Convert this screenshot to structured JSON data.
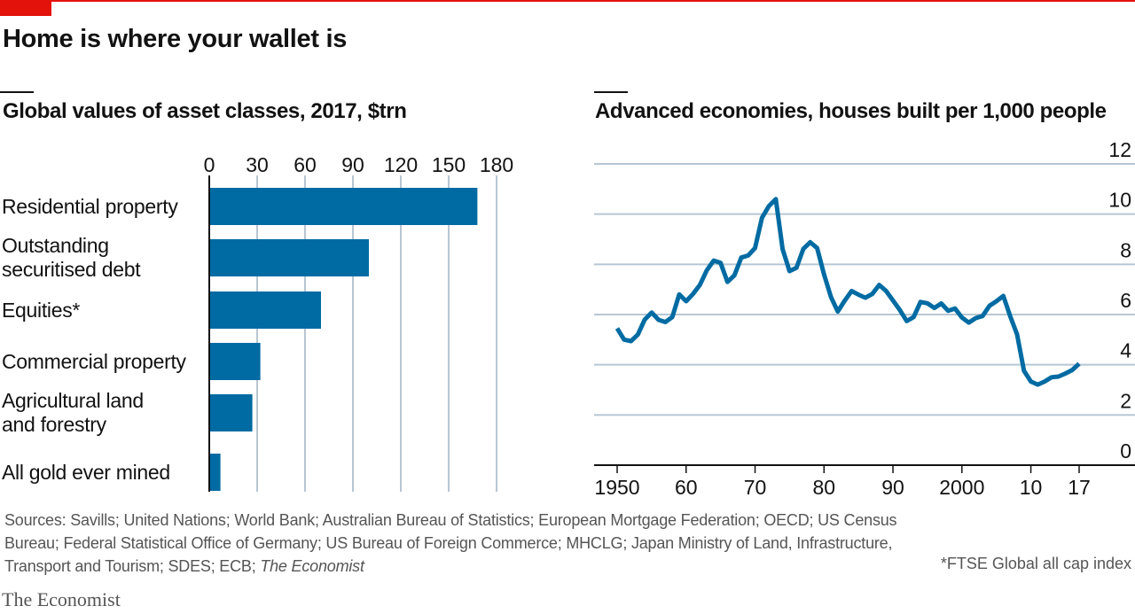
{
  "title": "Home is where your wallet is",
  "sources_prefix": "Sources: Savills; United Nations; World Bank; Australian Bureau of Statistics; European Mortgage Federation; OECD; US Census Bureau; Federal Statistical Office of Germany; US Bureau of Foreign Commerce;  MHCLG; Japan Ministry of Land, Infrastructure, Transport and Tourism; SDES; ECB;",
  "sources_italic": "The Economist",
  "footnote": "*FTSE Global all cap index",
  "brand": "The Economist",
  "colors": {
    "accent": "#e3120b",
    "bar": "#006ba2",
    "grid": "#b7c6d3"
  },
  "chart_data": [
    {
      "type": "bar",
      "title": "Global values of asset classes, 2017, $trn",
      "orientation": "horizontal",
      "categories": [
        "Residential property",
        "Outstanding securitised debt",
        "Equities*",
        "Commercial property",
        "Agricultural land and forestry",
        "All gold ever mined"
      ],
      "category_lines": [
        [
          "Residential property"
        ],
        [
          "Outstanding",
          "securitised debt"
        ],
        [
          "Equities*"
        ],
        [
          "Commercial property"
        ],
        [
          "Agricultural land",
          "and forestry"
        ],
        [
          "All gold ever mined"
        ]
      ],
      "values": [
        168,
        100,
        70,
        32,
        27,
        7
      ],
      "xlim": [
        0,
        180
      ],
      "xticks": [
        0,
        30,
        60,
        90,
        120,
        150,
        180
      ],
      "grid": true
    },
    {
      "type": "line",
      "title": "Advanced economies, houses built per 1,000 people",
      "x": [
        1950,
        1951,
        1952,
        1953,
        1954,
        1955,
        1956,
        1957,
        1958,
        1959,
        1960,
        1961,
        1962,
        1963,
        1964,
        1965,
        1966,
        1967,
        1968,
        1969,
        1970,
        1971,
        1972,
        1973,
        1974,
        1975,
        1976,
        1977,
        1978,
        1979,
        1980,
        1981,
        1982,
        1983,
        1984,
        1985,
        1986,
        1987,
        1988,
        1989,
        1990,
        1991,
        1992,
        1993,
        1994,
        1995,
        1996,
        1997,
        1998,
        1999,
        2000,
        2001,
        2002,
        2003,
        2004,
        2005,
        2006,
        2007,
        2008,
        2009,
        2010,
        2011,
        2012,
        2013,
        2014,
        2015,
        2016,
        2017
      ],
      "y": [
        5.45,
        5.0,
        4.94,
        5.2,
        5.8,
        6.08,
        5.79,
        5.7,
        5.9,
        6.8,
        6.53,
        6.82,
        7.18,
        7.76,
        8.15,
        8.06,
        7.3,
        7.56,
        8.27,
        8.35,
        8.65,
        9.85,
        10.32,
        10.6,
        8.6,
        7.73,
        7.86,
        8.62,
        8.88,
        8.65,
        7.6,
        6.7,
        6.12,
        6.55,
        6.94,
        6.79,
        6.67,
        6.82,
        7.18,
        6.94,
        6.56,
        6.18,
        5.74,
        5.9,
        6.5,
        6.45,
        6.26,
        6.44,
        6.15,
        6.24,
        5.88,
        5.68,
        5.86,
        5.94,
        6.35,
        6.53,
        6.74,
        5.94,
        5.21,
        3.76,
        3.33,
        3.21,
        3.33,
        3.5,
        3.53,
        3.65,
        3.79,
        4.04
      ],
      "ylim": [
        0,
        12
      ],
      "yticks": [
        0,
        2,
        4,
        6,
        8,
        10,
        12
      ],
      "xlim": [
        1947,
        2024
      ],
      "xticks": [
        1950,
        1960,
        1970,
        1980,
        1990,
        2000,
        2010,
        2017
      ],
      "xtick_labels": [
        "1950",
        "60",
        "70",
        "80",
        "90",
        "2000",
        "10",
        "17"
      ],
      "grid": true
    }
  ]
}
